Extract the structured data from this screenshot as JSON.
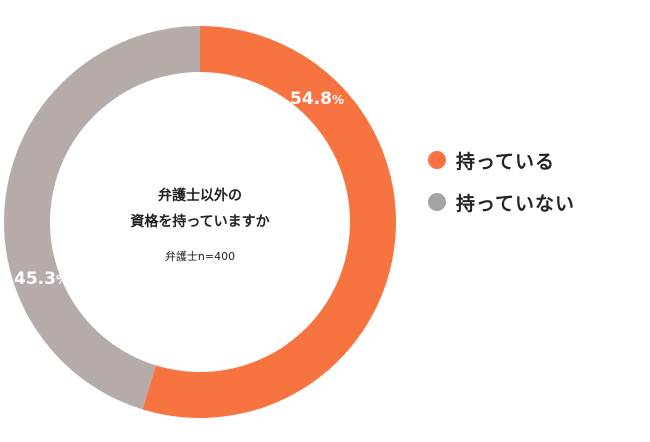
{
  "chart_data": {
    "type": "pie",
    "variant": "donut",
    "center_title_lines": [
      "弁護士以外の",
      "資格を持っていますか"
    ],
    "center_note": "弁護士n=400",
    "slices": [
      {
        "label": "持っている",
        "value": 54.8,
        "value_text": "54.8",
        "unit": "%",
        "color": "#F77440"
      },
      {
        "label": "持っていない",
        "value": 45.3,
        "value_text": "45.3",
        "unit": "%",
        "color": "#B5ABA9"
      }
    ],
    "legend_position": "right"
  },
  "legend": {
    "items": [
      {
        "label": "持っている",
        "color": "#F77440"
      },
      {
        "label": "持っていない",
        "color": "#A3A3A3"
      }
    ]
  }
}
